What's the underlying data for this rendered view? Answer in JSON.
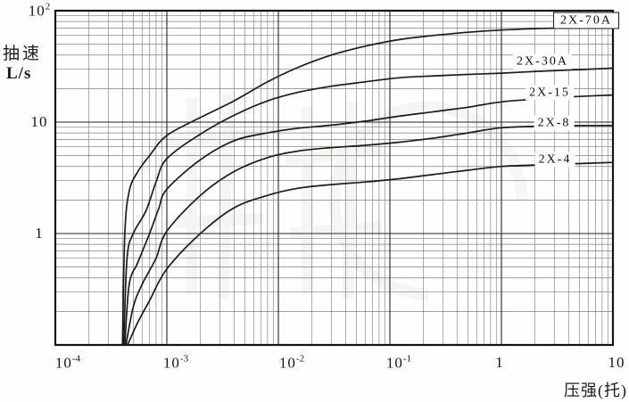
{
  "labels": {
    "y_title_line1": "抽速",
    "y_title_line2": "L/s",
    "x_title": "压强(托)"
  },
  "axis_ticks": {
    "x": [
      {
        "base": "10",
        "exp": "-4"
      },
      {
        "base": "10",
        "exp": "-3"
      },
      {
        "base": "10",
        "exp": "-2"
      },
      {
        "base": "10",
        "exp": "-1"
      },
      {
        "base": "1",
        "exp": ""
      },
      {
        "base": "10",
        "exp": ""
      }
    ],
    "y": [
      {
        "base": "10",
        "exp": "2"
      },
      {
        "base": "10",
        "exp": ""
      },
      {
        "base": "1",
        "exp": ""
      }
    ]
  },
  "colors": {
    "background": "#fefefe",
    "curve": "#1b1b1b",
    "grid_minor": "#565656",
    "grid_major": "#262626",
    "border": "#151515",
    "text": "#111111"
  },
  "chart_data": {
    "type": "line",
    "title": "",
    "xlabel": "压强(托)",
    "ylabel": "抽速 L/s",
    "x_scale": "log",
    "y_scale": "log",
    "xlim": [
      0.0001,
      10
    ],
    "ylim": [
      0.1,
      100
    ],
    "grid": "full log-log minor grid",
    "legend_position": "labels next to curves, right side",
    "series": [
      {
        "name": "2X-70A",
        "boxed_label": true,
        "points": [
          [
            0.0004,
            0.1
          ],
          [
            0.00042,
            1.0
          ],
          [
            0.00046,
            2.4
          ],
          [
            0.00055,
            3.6
          ],
          [
            0.0007,
            5.0
          ],
          [
            0.001,
            7.6
          ],
          [
            0.002,
            11.0
          ],
          [
            0.004,
            15.5
          ],
          [
            0.008,
            23
          ],
          [
            0.015,
            31
          ],
          [
            0.03,
            40
          ],
          [
            0.06,
            48
          ],
          [
            0.12,
            55
          ],
          [
            0.25,
            60
          ],
          [
            0.5,
            64
          ],
          [
            1,
            67
          ],
          [
            2.5,
            69.5
          ],
          [
            5,
            70
          ],
          [
            10,
            70
          ]
        ]
      },
      {
        "name": "2X-30A",
        "boxed_label": false,
        "points": [
          [
            0.00041,
            0.1
          ],
          [
            0.00044,
            0.6
          ],
          [
            0.0005,
            1.0
          ],
          [
            0.00065,
            1.6
          ],
          [
            0.0008,
            2.9
          ],
          [
            0.001,
            4.7
          ],
          [
            0.002,
            7.8
          ],
          [
            0.004,
            11.5
          ],
          [
            0.008,
            15.5
          ],
          [
            0.015,
            18.5
          ],
          [
            0.03,
            21
          ],
          [
            0.06,
            23
          ],
          [
            0.12,
            25
          ],
          [
            0.25,
            26
          ],
          [
            0.5,
            26.8
          ],
          [
            1,
            27.5
          ],
          [
            2.5,
            28.8
          ],
          [
            5,
            29.6
          ],
          [
            10,
            30.5
          ]
        ]
      },
      {
        "name": "2X-15",
        "boxed_label": false,
        "points": [
          [
            0.00042,
            0.1
          ],
          [
            0.00046,
            0.35
          ],
          [
            0.00055,
            0.55
          ],
          [
            0.0007,
            1.0
          ],
          [
            0.00085,
            1.7
          ],
          [
            0.001,
            2.5
          ],
          [
            0.002,
            4.6
          ],
          [
            0.004,
            6.8
          ],
          [
            0.008,
            8.0
          ],
          [
            0.015,
            8.8
          ],
          [
            0.03,
            9.4
          ],
          [
            0.06,
            10.2
          ],
          [
            0.12,
            11.3
          ],
          [
            0.25,
            12.4
          ],
          [
            0.5,
            13.6
          ],
          [
            1,
            15.2
          ],
          [
            2.5,
            16.3
          ],
          [
            5,
            17.0
          ],
          [
            10,
            17.5
          ]
        ]
      },
      {
        "name": "2X-8",
        "boxed_label": false,
        "points": [
          [
            0.00043,
            0.1
          ],
          [
            0.0005,
            0.22
          ],
          [
            0.0006,
            0.35
          ],
          [
            0.0008,
            0.6
          ],
          [
            0.001,
            1.05
          ],
          [
            0.002,
            2.2
          ],
          [
            0.004,
            3.6
          ],
          [
            0.008,
            4.8
          ],
          [
            0.015,
            5.5
          ],
          [
            0.03,
            5.9
          ],
          [
            0.06,
            6.2
          ],
          [
            0.12,
            6.6
          ],
          [
            0.25,
            7.2
          ],
          [
            0.5,
            8.0
          ],
          [
            1,
            8.9
          ],
          [
            2.5,
            9.2
          ],
          [
            5,
            9.3
          ],
          [
            10,
            9.3
          ]
        ]
      },
      {
        "name": "2X-4",
        "boxed_label": false,
        "points": [
          [
            0.000445,
            0.1
          ],
          [
            0.00055,
            0.16
          ],
          [
            0.0007,
            0.25
          ],
          [
            0.001,
            0.48
          ],
          [
            0.002,
            1.0
          ],
          [
            0.004,
            1.7
          ],
          [
            0.008,
            2.2
          ],
          [
            0.015,
            2.55
          ],
          [
            0.03,
            2.75
          ],
          [
            0.06,
            2.9
          ],
          [
            0.12,
            3.1
          ],
          [
            0.25,
            3.4
          ],
          [
            0.5,
            3.7
          ],
          [
            1,
            4.0
          ],
          [
            2.5,
            4.15
          ],
          [
            5,
            4.25
          ],
          [
            10,
            4.35
          ]
        ]
      }
    ]
  }
}
